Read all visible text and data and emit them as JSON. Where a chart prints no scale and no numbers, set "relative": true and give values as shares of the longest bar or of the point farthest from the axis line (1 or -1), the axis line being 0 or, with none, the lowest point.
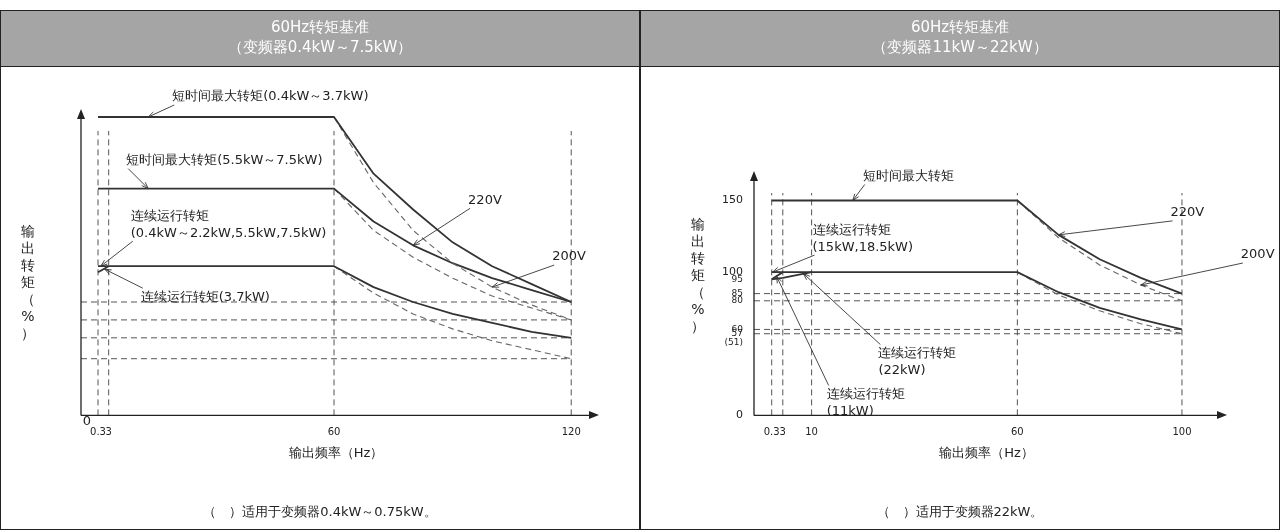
{
  "chart_data": [
    {
      "type": "line",
      "title": "60Hz转矩基准",
      "subtitle": "（变频器0.4kW～7.5kW）",
      "xlabel": "输出频率（Hz）",
      "ylabel": "输出转矩（%）",
      "relative": true,
      "xlim": [
        -4,
        125
      ],
      "xticks": [
        0.3,
        3,
        60,
        120
      ],
      "marker": "none",
      "series": [
        {
          "color": "#333333",
          "line_style": "solid",
          "x": [
            0.3,
            60,
            70,
            80,
            90,
            100,
            110,
            120
          ],
          "values": [
            1,
            1,
            0.81,
            0.69,
            0.58,
            0.5,
            0.44,
            0.38
          ]
        },
        {
          "color": "#666666",
          "line_style": "dashed",
          "x": [
            60,
            70,
            80,
            90,
            100,
            110,
            120
          ],
          "values": [
            1,
            0.78,
            0.62,
            0.51,
            0.43,
            0.37,
            0.32
          ]
        },
        {
          "color": "#333333",
          "line_style": "solid",
          "x": [
            0.3,
            60,
            70,
            80,
            90,
            100,
            110,
            120
          ],
          "values": [
            0.76,
            0.76,
            0.65,
            0.57,
            0.51,
            0.46,
            0.42,
            0.38
          ]
        },
        {
          "color": "#666666",
          "line_style": "dashed",
          "x": [
            60,
            70,
            80,
            90,
            100,
            110,
            120
          ],
          "values": [
            0.76,
            0.62,
            0.53,
            0.46,
            0.4,
            0.36,
            0.32
          ]
        },
        {
          "color": "#333333",
          "line_style": "solid",
          "x": [
            0.3,
            60,
            70,
            80,
            90,
            100,
            110,
            120
          ],
          "values": [
            0.5,
            0.5,
            0.43,
            0.38,
            0.34,
            0.31,
            0.28,
            0.26
          ]
        },
        {
          "color": "#666666",
          "line_style": "dashed",
          "x": [
            60,
            70,
            80,
            90,
            100,
            110,
            120
          ],
          "values": [
            0.5,
            0.41,
            0.34,
            0.29,
            0.25,
            0.22,
            0.19
          ]
        },
        {
          "color": "#333333",
          "line_style": "solid",
          "x": [
            0.3,
            3
          ],
          "values": [
            0.48,
            0.5
          ]
        }
      ],
      "ref_lines": [
        {
          "axis": "y",
          "value": 0.38,
          "color": "#555555",
          "line_style": "dashed"
        },
        {
          "axis": "y",
          "value": 0.32,
          "color": "#555555",
          "line_style": "dashed"
        },
        {
          "axis": "y",
          "value": 0.26,
          "color": "#555555",
          "line_style": "dashed"
        },
        {
          "axis": "y",
          "value": 0.19,
          "color": "#555555",
          "line_style": "dashed"
        },
        {
          "axis": "x",
          "value": 0.3,
          "color": "#555555",
          "line_style": "dashed"
        },
        {
          "axis": "x",
          "value": 3,
          "color": "#555555",
          "line_style": "dashed"
        },
        {
          "axis": "x",
          "value": 60,
          "color": "#555555",
          "line_style": "dashed"
        },
        {
          "axis": "x",
          "value": 120,
          "color": "#555555",
          "line_style": "dashed"
        }
      ],
      "annotations": [
        {
          "text": "短时间最大转矩(0.4kW～3.7kW)",
          "x": 13,
          "y": 1
        },
        {
          "text": "短时间最大转矩(5.5kW～7.5kW)",
          "x": 13,
          "y": 0.76
        },
        {
          "text": "连续运行转矩\n(0.4kW～2.2kW,5.5kW,7.5kW)",
          "x": 1,
          "y": 0.5
        },
        {
          "text": "连续运行转矩(3.7kW)",
          "x": 2,
          "y": 0.49
        },
        {
          "text": "220V",
          "x": 80,
          "y": 0.57
        },
        {
          "text": "200V",
          "x": 100,
          "y": 0.43
        },
        {
          "text": "0",
          "x": 0,
          "y": 0
        },
        "（　）适用于变频器0.4kW～0.75kW。"
      ]
    },
    {
      "type": "line",
      "title": "60Hz转矩基准",
      "subtitle": "（变频器11kW～22kW）",
      "xlabel": "输出频率（Hz）",
      "ylabel": "输出转矩（%）",
      "xlim": [
        -4,
        109
      ],
      "xticks": [
        0.3,
        3,
        10,
        60,
        100
      ],
      "ylim": [
        0,
        165
      ],
      "yticks": [
        0,
        {
          "value": 51,
          "label": "(51)"
        },
        57,
        60,
        80,
        85,
        95,
        100,
        150
      ],
      "marker": "none",
      "series": [
        {
          "color": "#333333",
          "line_style": "solid",
          "x": [
            0.3,
            60,
            70,
            80,
            90,
            100
          ],
          "values": [
            150,
            150,
            126,
            109,
            96,
            85
          ]
        },
        {
          "color": "#666666",
          "line_style": "dashed",
          "x": [
            60,
            70,
            80,
            90,
            100
          ],
          "values": [
            150,
            124,
            105,
            91,
            80
          ]
        },
        {
          "color": "#333333",
          "line_style": "solid",
          "x": [
            0.3,
            60,
            70,
            80,
            90,
            100
          ],
          "values": [
            100,
            100,
            86,
            75,
            67,
            60
          ]
        },
        {
          "color": "#666666",
          "line_style": "dashed",
          "x": [
            60,
            70,
            80,
            90,
            100
          ],
          "values": [
            100,
            84,
            73,
            64,
            57
          ]
        },
        {
          "color": "#333333",
          "line_style": "solid",
          "x": [
            0.3,
            3
          ],
          "values": [
            95,
            100
          ]
        },
        {
          "color": "#333333",
          "line_style": "solid",
          "x": [
            0.3,
            3,
            10
          ],
          "values": [
            95,
            96,
            100
          ]
        }
      ],
      "ref_lines": [
        {
          "axis": "y",
          "value": 85,
          "color": "#555555",
          "line_style": "dashed"
        },
        {
          "axis": "y",
          "value": 80,
          "color": "#555555",
          "line_style": "dashed"
        },
        {
          "axis": "y",
          "value": 60,
          "color": "#555555",
          "line_style": "dashed"
        },
        {
          "axis": "y",
          "value": 57,
          "color": "#555555",
          "line_style": "dashed"
        },
        {
          "axis": "x",
          "value": 0.3,
          "color": "#555555",
          "line_style": "dashed"
        },
        {
          "axis": "x",
          "value": 3,
          "color": "#555555",
          "line_style": "dashed"
        },
        {
          "axis": "x",
          "value": 10,
          "color": "#555555",
          "line_style": "dashed"
        },
        {
          "axis": "x",
          "value": 60,
          "color": "#555555",
          "line_style": "dashed"
        },
        {
          "axis": "x",
          "value": 100,
          "color": "#555555",
          "line_style": "dashed"
        }
      ],
      "annotations": [
        {
          "text": "短时间最大转矩",
          "x": 20,
          "y": 150
        },
        {
          "text": "连续运行转矩\n(15kW,18.5kW)",
          "x": 0.5,
          "y": 100
        },
        {
          "text": "连续运行转矩\n(22kW)",
          "x": 8,
          "y": 99
        },
        {
          "text": "连续运行转矩\n(11kW)",
          "x": 1.5,
          "y": 97
        },
        {
          "text": "220V",
          "x": 70,
          "y": 126
        },
        {
          "text": "200V",
          "x": 90,
          "y": 91
        },
        "（　）适用于变频器22kW。"
      ]
    }
  ]
}
